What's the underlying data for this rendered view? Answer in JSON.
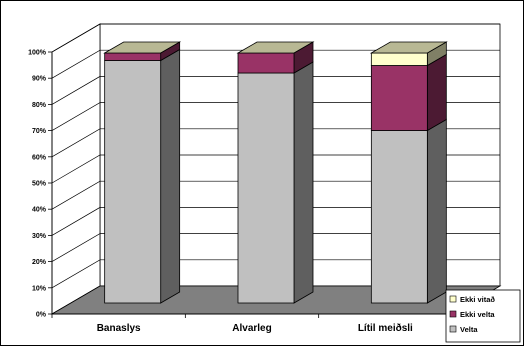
{
  "chart_data": {
    "type": "bar",
    "stacked": true,
    "percent": true,
    "style": "3d",
    "categories": [
      "Banaslys",
      "Alvarleg",
      "Lítil  meiðsli"
    ],
    "series": [
      {
        "name": "Velta",
        "values": [
          97,
          92,
          69
        ],
        "color": "#c0c0c0",
        "side_color": "#5f5f5f",
        "top_color": "#d4d4d4"
      },
      {
        "name": "Ekki velta",
        "values": [
          3,
          8,
          26
        ],
        "color": "#993366",
        "side_color": "#4c1a33",
        "top_color": "#993366"
      },
      {
        "name": "Ekki vitað",
        "values": [
          0,
          0,
          5
        ],
        "color": "#ffffcc",
        "side_color": "#808066",
        "top_color": "#c8c8a0"
      }
    ],
    "y_ticks": [
      "0%",
      "10%",
      "20%",
      "30%",
      "40%",
      "50%",
      "60%",
      "70%",
      "80%",
      "90%",
      "100%"
    ],
    "ylim": [
      0,
      100
    ],
    "grid": true,
    "legend_position": "bottom-right",
    "legend_order": [
      "Ekki vitað",
      "Ekki velta",
      "Velta"
    ]
  }
}
